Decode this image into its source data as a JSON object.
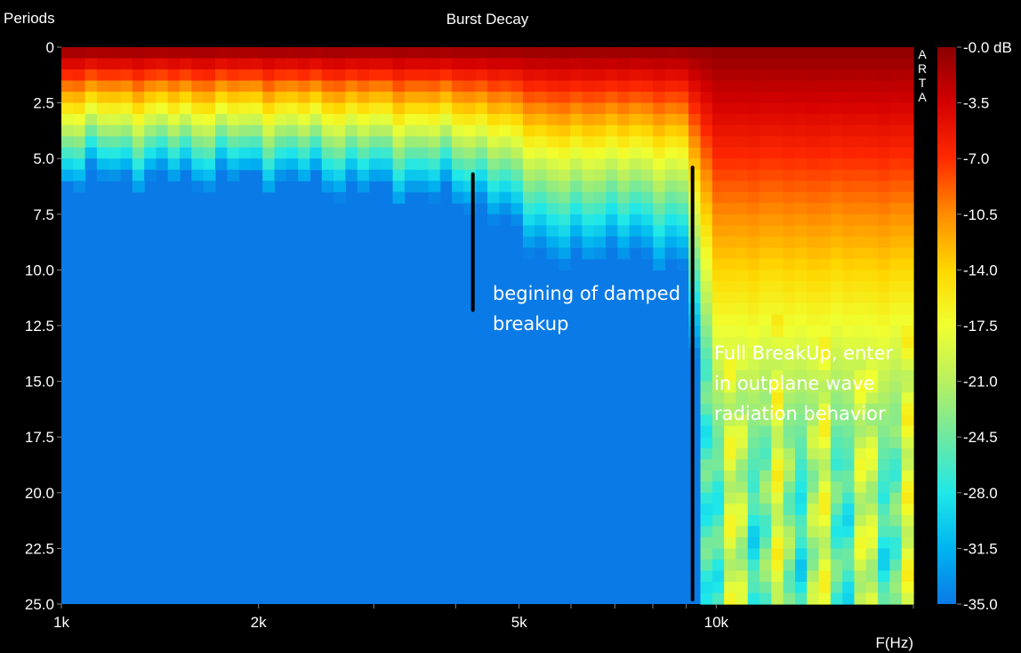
{
  "chart_data": {
    "type": "heatmap",
    "title": "Burst Decay",
    "ylabel": "Periods",
    "xlabel": "F(Hz)",
    "watermark": "ARTA",
    "x_scale": "log",
    "xlim": [
      1000,
      20000
    ],
    "x_ticks": [
      1000,
      2000,
      5000,
      10000
    ],
    "x_tick_labels": [
      "1k",
      "2k",
      "5k",
      "10k"
    ],
    "ylim": [
      0,
      25
    ],
    "y_ticks": [
      0,
      2.5,
      5,
      7.5,
      10,
      12.5,
      15,
      17.5,
      20,
      22.5,
      25
    ],
    "y_tick_labels": [
      "0",
      "2.5",
      "5.0",
      "7.5",
      "10.0",
      "12.5",
      "15.0",
      "17.5",
      "20.0",
      "22.5",
      "25.0"
    ],
    "colorbar": {
      "min": -35,
      "max": 0,
      "tick_values": [
        0,
        -3.5,
        -7,
        -10.5,
        -14,
        -17.5,
        -21,
        -24.5,
        -28,
        -31.5,
        -35
      ],
      "tick_labels": [
        "-0.0 dB",
        "-3.5",
        "-7.0",
        "-10.5",
        "-14.0",
        "-17.5",
        "-21.0",
        "-24.5",
        "-28.0",
        "-31.5",
        "-35.0"
      ],
      "colors": [
        "#8b0000",
        "#d40000",
        "#ff2a00",
        "#ff8c00",
        "#ffd700",
        "#f0ff30",
        "#b8f060",
        "#6ee8a0",
        "#20e8e8",
        "#00b4f0",
        "#0a7ae6"
      ]
    },
    "decay_profile_periods_to_floor": {
      "x_hz": [
        1000,
        2000,
        3000,
        4300,
        5000,
        6000,
        7000,
        8000,
        9000,
        10000,
        12000,
        15000,
        17000,
        20000
      ],
      "periods": [
        6,
        6,
        6.5,
        7,
        8.5,
        10,
        9,
        10,
        9.5,
        25,
        25,
        25,
        25,
        25
      ]
    },
    "annotations": [
      {
        "text_lines": [
          "begining of damped",
          "breakup"
        ],
        "marker_x_hz": 4250,
        "marker_y_range": [
          5.7,
          11.8
        ]
      },
      {
        "text_lines": [
          "Full BreakUp, enter",
          "in outplane wave",
          "radiation behavior"
        ],
        "marker_x_hz": 9200,
        "marker_y_range": [
          5.4,
          24.8
        ]
      }
    ]
  }
}
